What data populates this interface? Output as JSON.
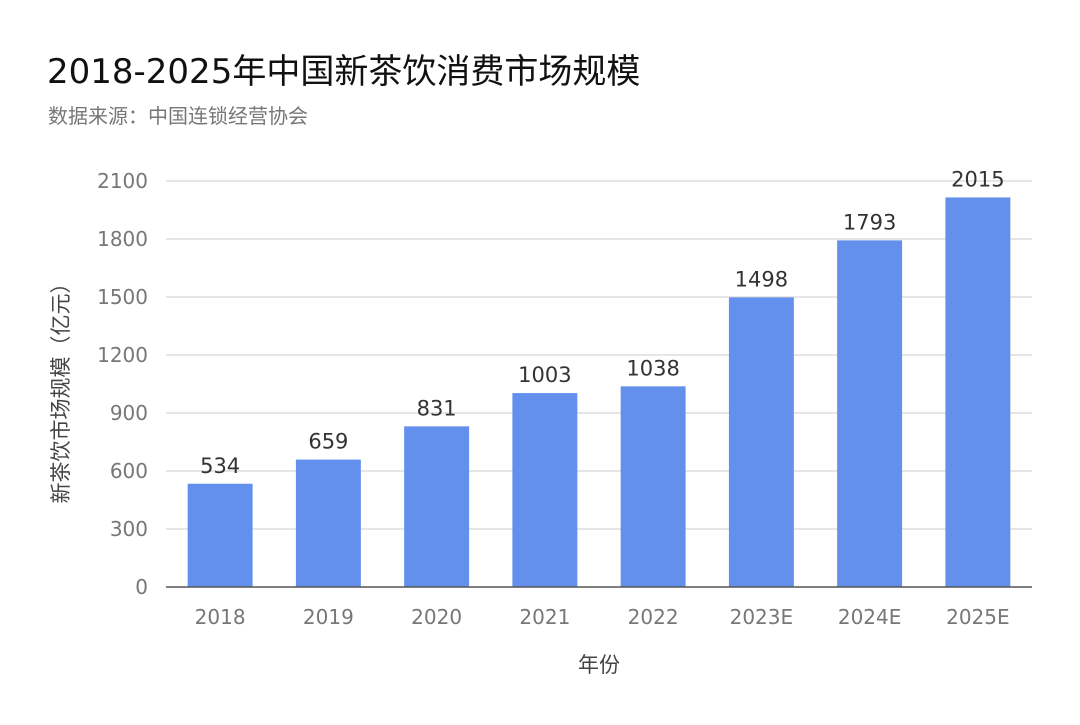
{
  "chart_data": {
    "type": "bar",
    "title": "2018-2025年中国新茶饮消费市场规模",
    "subtitle": "数据来源：中国连锁经营协会",
    "xlabel": "年份",
    "ylabel": "新茶饮市场规模（亿元）",
    "categories": [
      "2018",
      "2019",
      "2020",
      "2021",
      "2022",
      "2023E",
      "2024E",
      "2025E"
    ],
    "values": [
      534,
      659,
      831,
      1003,
      1038,
      1498,
      1793,
      2015
    ],
    "ylim": [
      0,
      2100
    ],
    "yticks": [
      0,
      300,
      600,
      900,
      1200,
      1500,
      1800,
      2100
    ],
    "grid": true,
    "bar_color": "#6290EC",
    "grid_color": "#DDDDDD",
    "axis_color": "#555555"
  }
}
